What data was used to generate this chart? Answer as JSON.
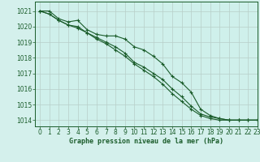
{
  "title": "Graphe pression niveau de la mer (hPa)",
  "bg_color": "#d4f0ec",
  "plot_bg_color": "#cff0eb",
  "grid_color": "#b8cec8",
  "line_color": "#1a5c2a",
  "marker_color": "#1a5c2a",
  "xlim": [
    -0.5,
    23
  ],
  "ylim": [
    1013.6,
    1021.6
  ],
  "xticks": [
    0,
    1,
    2,
    3,
    4,
    5,
    6,
    7,
    8,
    9,
    10,
    11,
    12,
    13,
    14,
    15,
    16,
    17,
    18,
    19,
    20,
    21,
    22,
    23
  ],
  "yticks": [
    1014,
    1015,
    1016,
    1017,
    1018,
    1019,
    1020,
    1021
  ],
  "series": [
    [
      1021.0,
      1021.0,
      1020.5,
      1020.3,
      1020.4,
      1019.8,
      1019.5,
      1019.4,
      1019.4,
      1019.2,
      1018.7,
      1018.5,
      1018.1,
      1017.6,
      1016.8,
      1016.4,
      1015.8,
      1014.7,
      1014.3,
      1014.1,
      1014.0,
      1014.0,
      1014.0,
      1014.0
    ],
    [
      1021.0,
      1020.8,
      1020.4,
      1020.1,
      1020.0,
      1019.6,
      1019.3,
      1019.0,
      1018.7,
      1018.3,
      1017.7,
      1017.4,
      1017.0,
      1016.6,
      1016.0,
      1015.5,
      1014.9,
      1014.4,
      1014.2,
      1014.1,
      1014.0,
      1014.0,
      1014.0,
      1014.0
    ],
    [
      1021.0,
      1020.8,
      1020.4,
      1020.1,
      1019.9,
      1019.6,
      1019.2,
      1018.9,
      1018.5,
      1018.1,
      1017.6,
      1017.2,
      1016.8,
      1016.3,
      1015.7,
      1015.2,
      1014.7,
      1014.3,
      1014.1,
      1014.0,
      1014.0,
      1014.0,
      1014.0,
      1014.0
    ]
  ]
}
